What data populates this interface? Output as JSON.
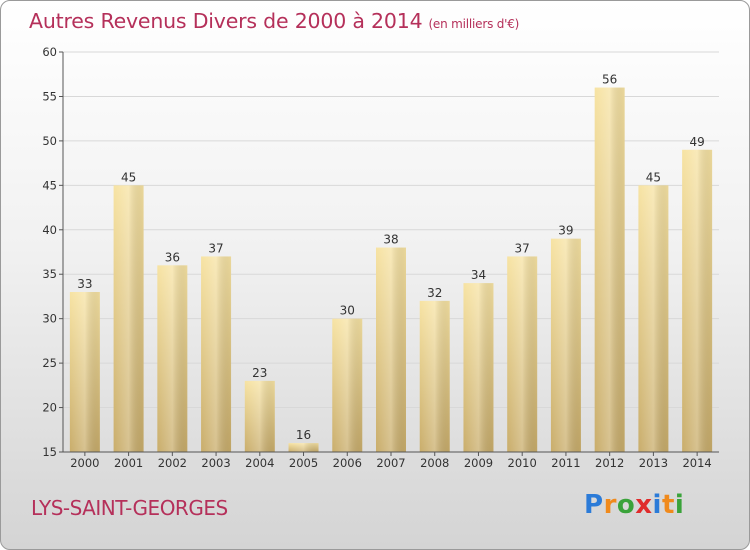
{
  "title": "Autres Revenus Divers de 2000 à 2014",
  "unit": "(en milliers d'€)",
  "location": "LYS-SAINT-GEORGES",
  "logo": {
    "letters": [
      "P",
      "r",
      "o",
      "x",
      "i",
      "t",
      "i"
    ],
    "colors": [
      "#2b7bd8",
      "#f08a1c",
      "#3aa33a",
      "#e02b2b",
      "#2b7bd8",
      "#f08a1c",
      "#3aa33a"
    ]
  },
  "colors": {
    "bar_light": "#f7e3a3",
    "bar_dark": "#c9ad6b",
    "grid": "#d8d8d8",
    "axis": "#555555"
  },
  "chart_data": {
    "type": "bar",
    "categories": [
      "2000",
      "2001",
      "2002",
      "2003",
      "2004",
      "2005",
      "2006",
      "2007",
      "2008",
      "2009",
      "2010",
      "2011",
      "2012",
      "2013",
      "2014"
    ],
    "values": [
      33,
      45,
      36,
      37,
      23,
      16,
      30,
      38,
      32,
      34,
      37,
      39,
      56,
      45,
      49
    ],
    "ylim": [
      15,
      60
    ],
    "yticks": [
      15,
      20,
      25,
      30,
      35,
      40,
      45,
      50,
      55,
      60
    ],
    "grid": true,
    "show_value_labels": true
  }
}
